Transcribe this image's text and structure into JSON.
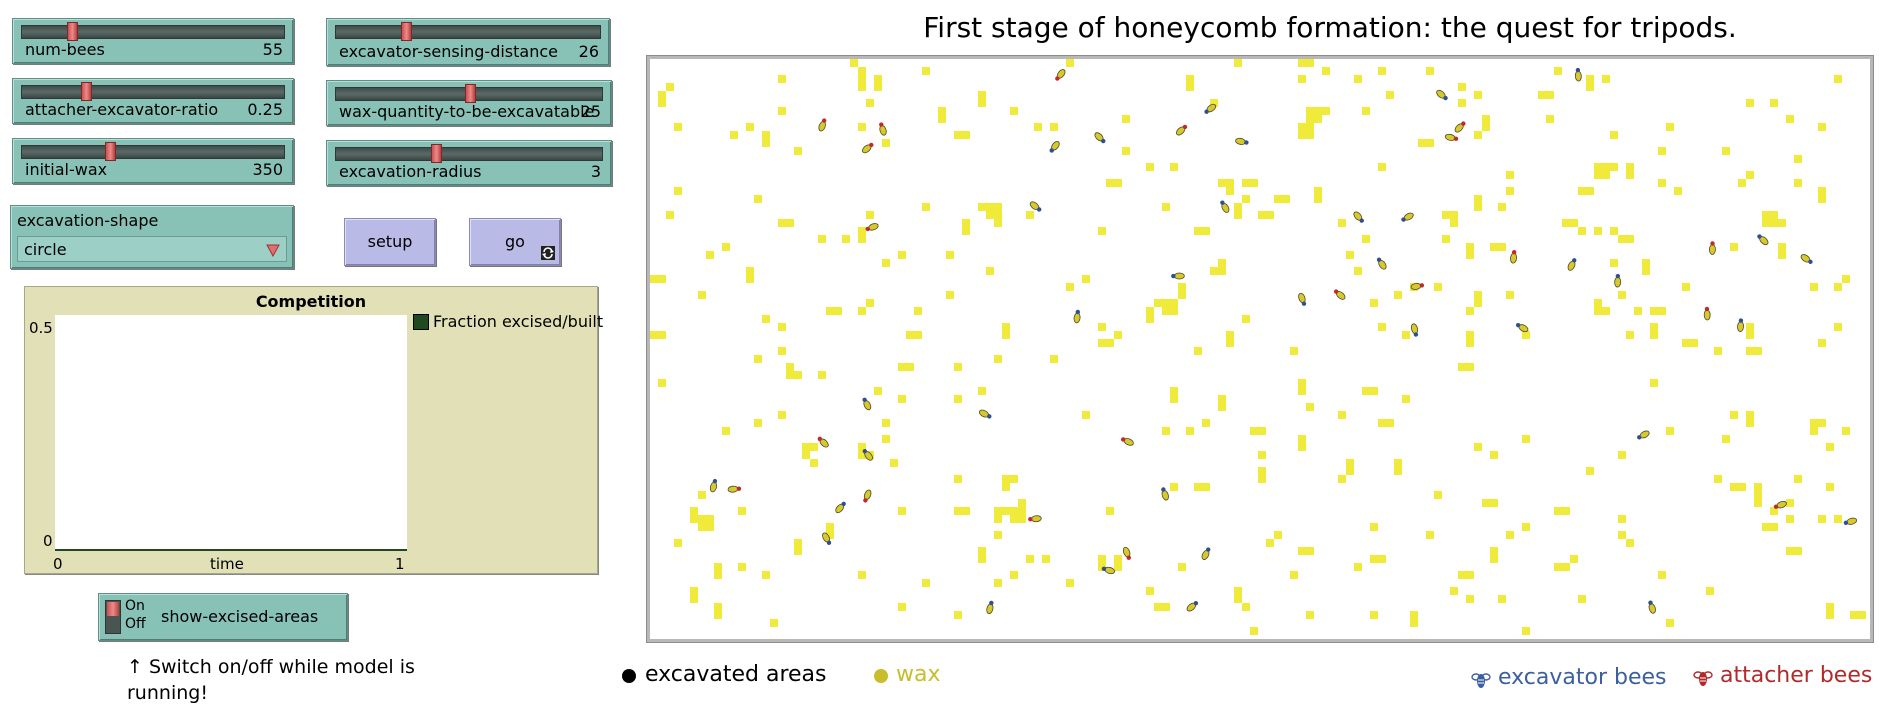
{
  "title": "First stage of honeycomb formation: the quest for tripods.",
  "sliders": [
    {
      "id": "num-bees",
      "label": "num-bees",
      "value": "55",
      "fraction": 0.19
    },
    {
      "id": "attacher-excavator-ratio",
      "label": "attacher-excavator-ratio",
      "value": "0.25",
      "fraction": 0.25
    },
    {
      "id": "initial-wax",
      "label": "initial-wax",
      "value": "350",
      "fraction": 0.35
    },
    {
      "id": "excavator-sensing-distance",
      "label": "excavator-sensing-distance",
      "value": "26",
      "fraction": 0.26
    },
    {
      "id": "wax-quantity-to-be-excavatable",
      "label": "wax-quantity-to-be-excavatable",
      "value": "25",
      "fraction": 0.5
    },
    {
      "id": "excavation-radius",
      "label": "excavation-radius",
      "value": "3",
      "fraction": 0.37
    }
  ],
  "chooser": {
    "label": "excavation-shape",
    "value": "circle"
  },
  "buttons": {
    "setup": "setup",
    "go": "go"
  },
  "plot": {
    "title": "Competition",
    "y_max": "0.5",
    "y_min": "0",
    "x_min": "0",
    "x_max": "1",
    "x_label": "time",
    "legend": "Fraction excised/built",
    "legend_color": "#1f4a1f"
  },
  "switch": {
    "on": "On",
    "off": "Off",
    "label": "show-excised-areas",
    "state": "on"
  },
  "note": "↑ Switch on/off while model is running!",
  "legend_items": {
    "excavated": "excavated areas",
    "wax": "wax",
    "excavator": "excavator bees",
    "attacher": "attacher bees"
  },
  "colors": {
    "wax": "#f0ea3a",
    "wax_text": "#c8bd2a",
    "excavator_text": "#3b5fa0",
    "attacher_text": "#b02a2a",
    "slider_bg": "#88c1b6",
    "button_bg": "#babae6",
    "plot_bg": "#e1e0b6"
  }
}
